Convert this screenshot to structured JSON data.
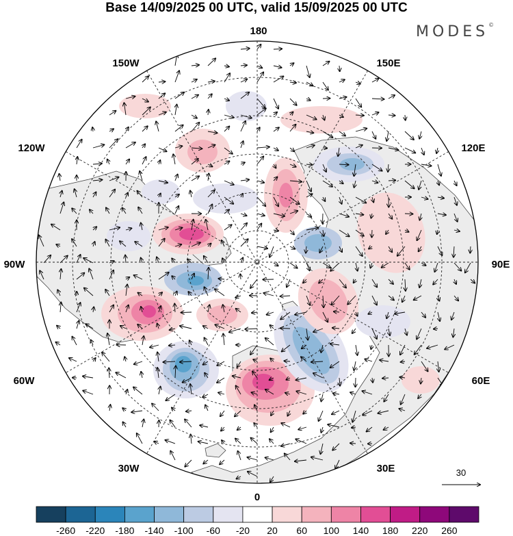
{
  "title": "Base 14/09/2025 00 UTC, valid 15/09/2025 00 UTC",
  "logo": "MODES",
  "logo_mark": "©",
  "longitude_labels": {
    "lon_180": "180",
    "lon_150w": "150W",
    "lon_150e": "150E",
    "lon_120w": "120W",
    "lon_120e": "120E",
    "lon_90w": "90W",
    "lon_90e": "90E",
    "lon_60w": "60W",
    "lon_60e": "60E",
    "lon_30w": "30W",
    "lon_30e": "30E",
    "lon_0": "0"
  },
  "reference_vector": {
    "label": "30"
  },
  "colorbar": {
    "labels": [
      "-260",
      "-220",
      "-180",
      "-140",
      "-100",
      "-60",
      "-20",
      "20",
      "60",
      "100",
      "140",
      "180",
      "220",
      "260"
    ],
    "colors": [
      "#16405e",
      "#1c6594",
      "#2b85ba",
      "#5aa3cd",
      "#8fb8d9",
      "#bccbe3",
      "#e4e4f1",
      "#ffffff",
      "#f8d8d8",
      "#f4b3bd",
      "#ee84a6",
      "#e24e95",
      "#c01c86",
      "#8e087a",
      "#5e0a6b"
    ]
  },
  "colors": {
    "land": "#ececec",
    "ocean": "#ffffff",
    "graticule": "#222222",
    "coast": "#4a4a4a"
  }
}
